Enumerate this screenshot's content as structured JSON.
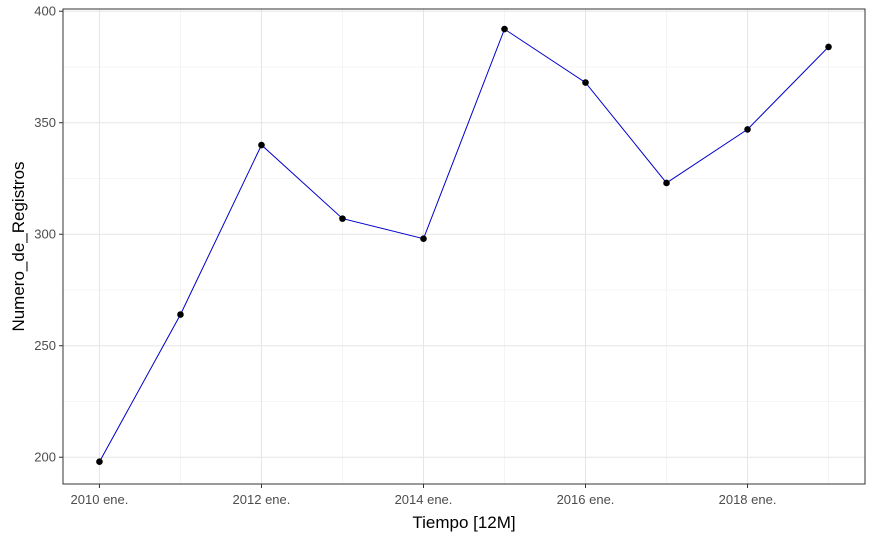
{
  "chart_data": {
    "type": "line",
    "title": "",
    "xlabel": "Tiempo [12M]",
    "ylabel": "Numero_de_Registros",
    "x": [
      2010,
      2011,
      2012,
      2013,
      2014,
      2015,
      2016,
      2017,
      2018,
      2019
    ],
    "y": [
      198,
      264,
      340,
      307,
      298,
      392,
      368,
      323,
      347,
      384
    ],
    "xlim": [
      2009.55,
      2019.45
    ],
    "ylim": [
      188,
      401
    ],
    "x_ticks": [
      2010,
      2012,
      2014,
      2016,
      2018
    ],
    "x_tick_labels": [
      "2010 ene.",
      "2012 ene.",
      "2014 ene.",
      "2016 ene.",
      "2018 ene."
    ],
    "y_ticks": [
      200,
      250,
      300,
      350,
      400
    ],
    "y_tick_labels": [
      "200",
      "250",
      "300",
      "350",
      "400"
    ],
    "grid": true,
    "legend": "none",
    "line_color": "#0000cc",
    "point_color": "#000000"
  }
}
